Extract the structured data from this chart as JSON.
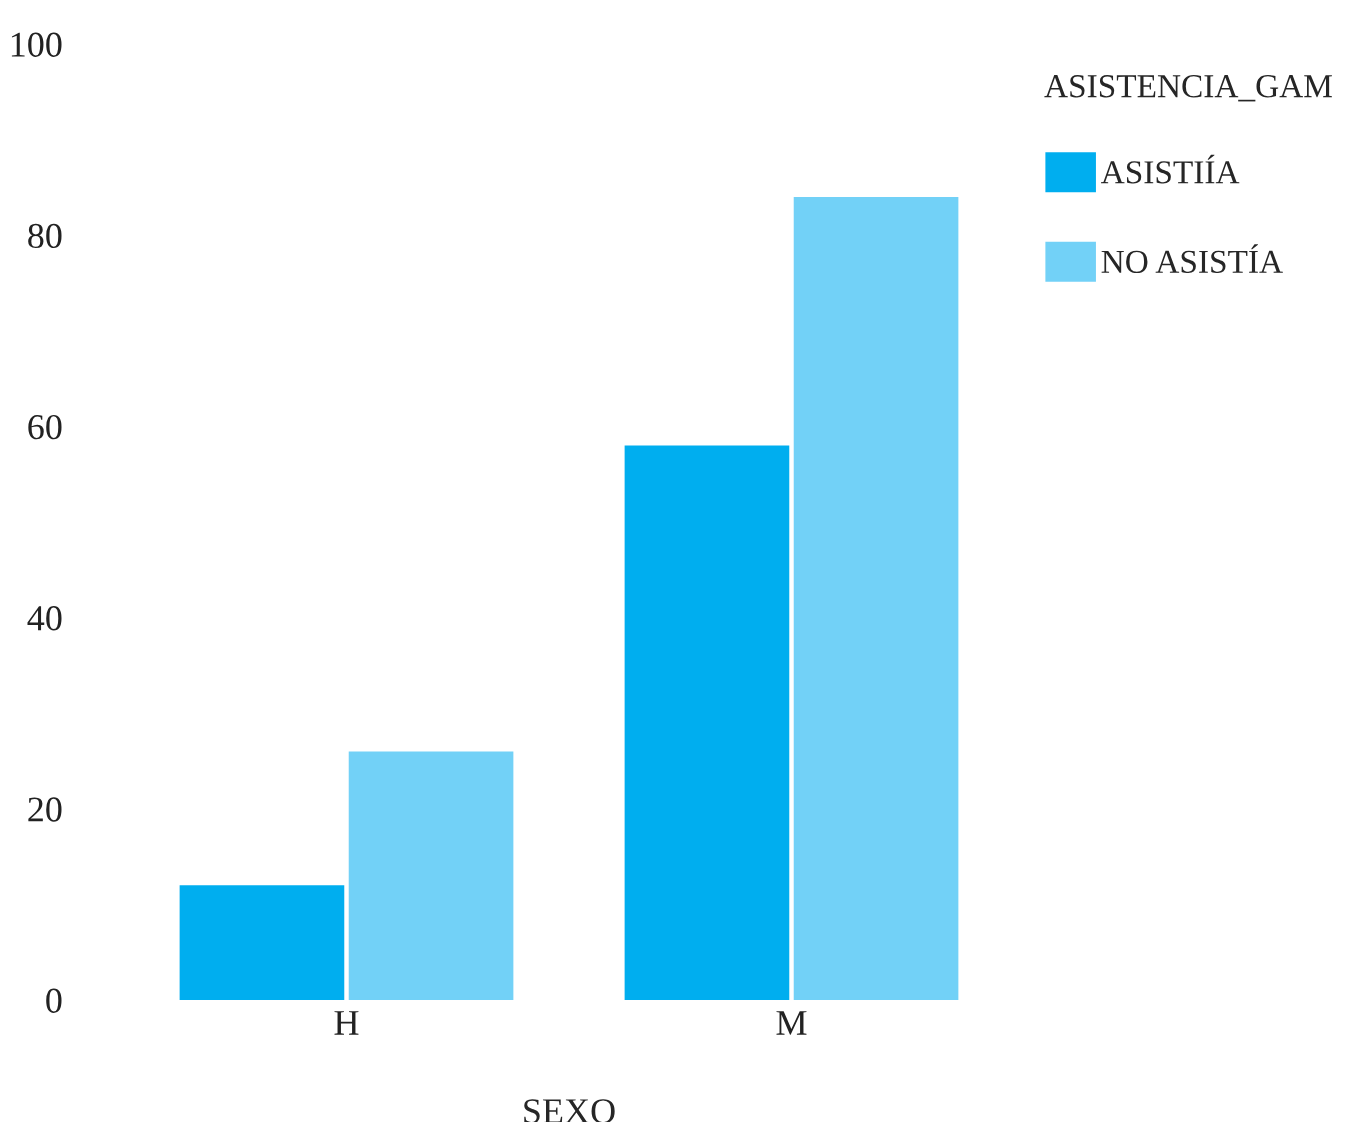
{
  "chart_data": {
    "type": "bar",
    "xlabel": "SEXO",
    "legend_title": "ASISTENCIA_GAM",
    "categories": [
      "H",
      "M"
    ],
    "series": [
      {
        "name": "ASISTIÍA",
        "color": "#00aeef",
        "values": [
          12,
          58
        ]
      },
      {
        "name": "NO ASISTÍA",
        "color": "#72d1f7",
        "values": [
          26,
          84
        ]
      }
    ],
    "ylim": [
      0,
      100
    ],
    "yticks": [
      0,
      20,
      40,
      60,
      80,
      100
    ],
    "grid": false,
    "legend": "top right"
  }
}
